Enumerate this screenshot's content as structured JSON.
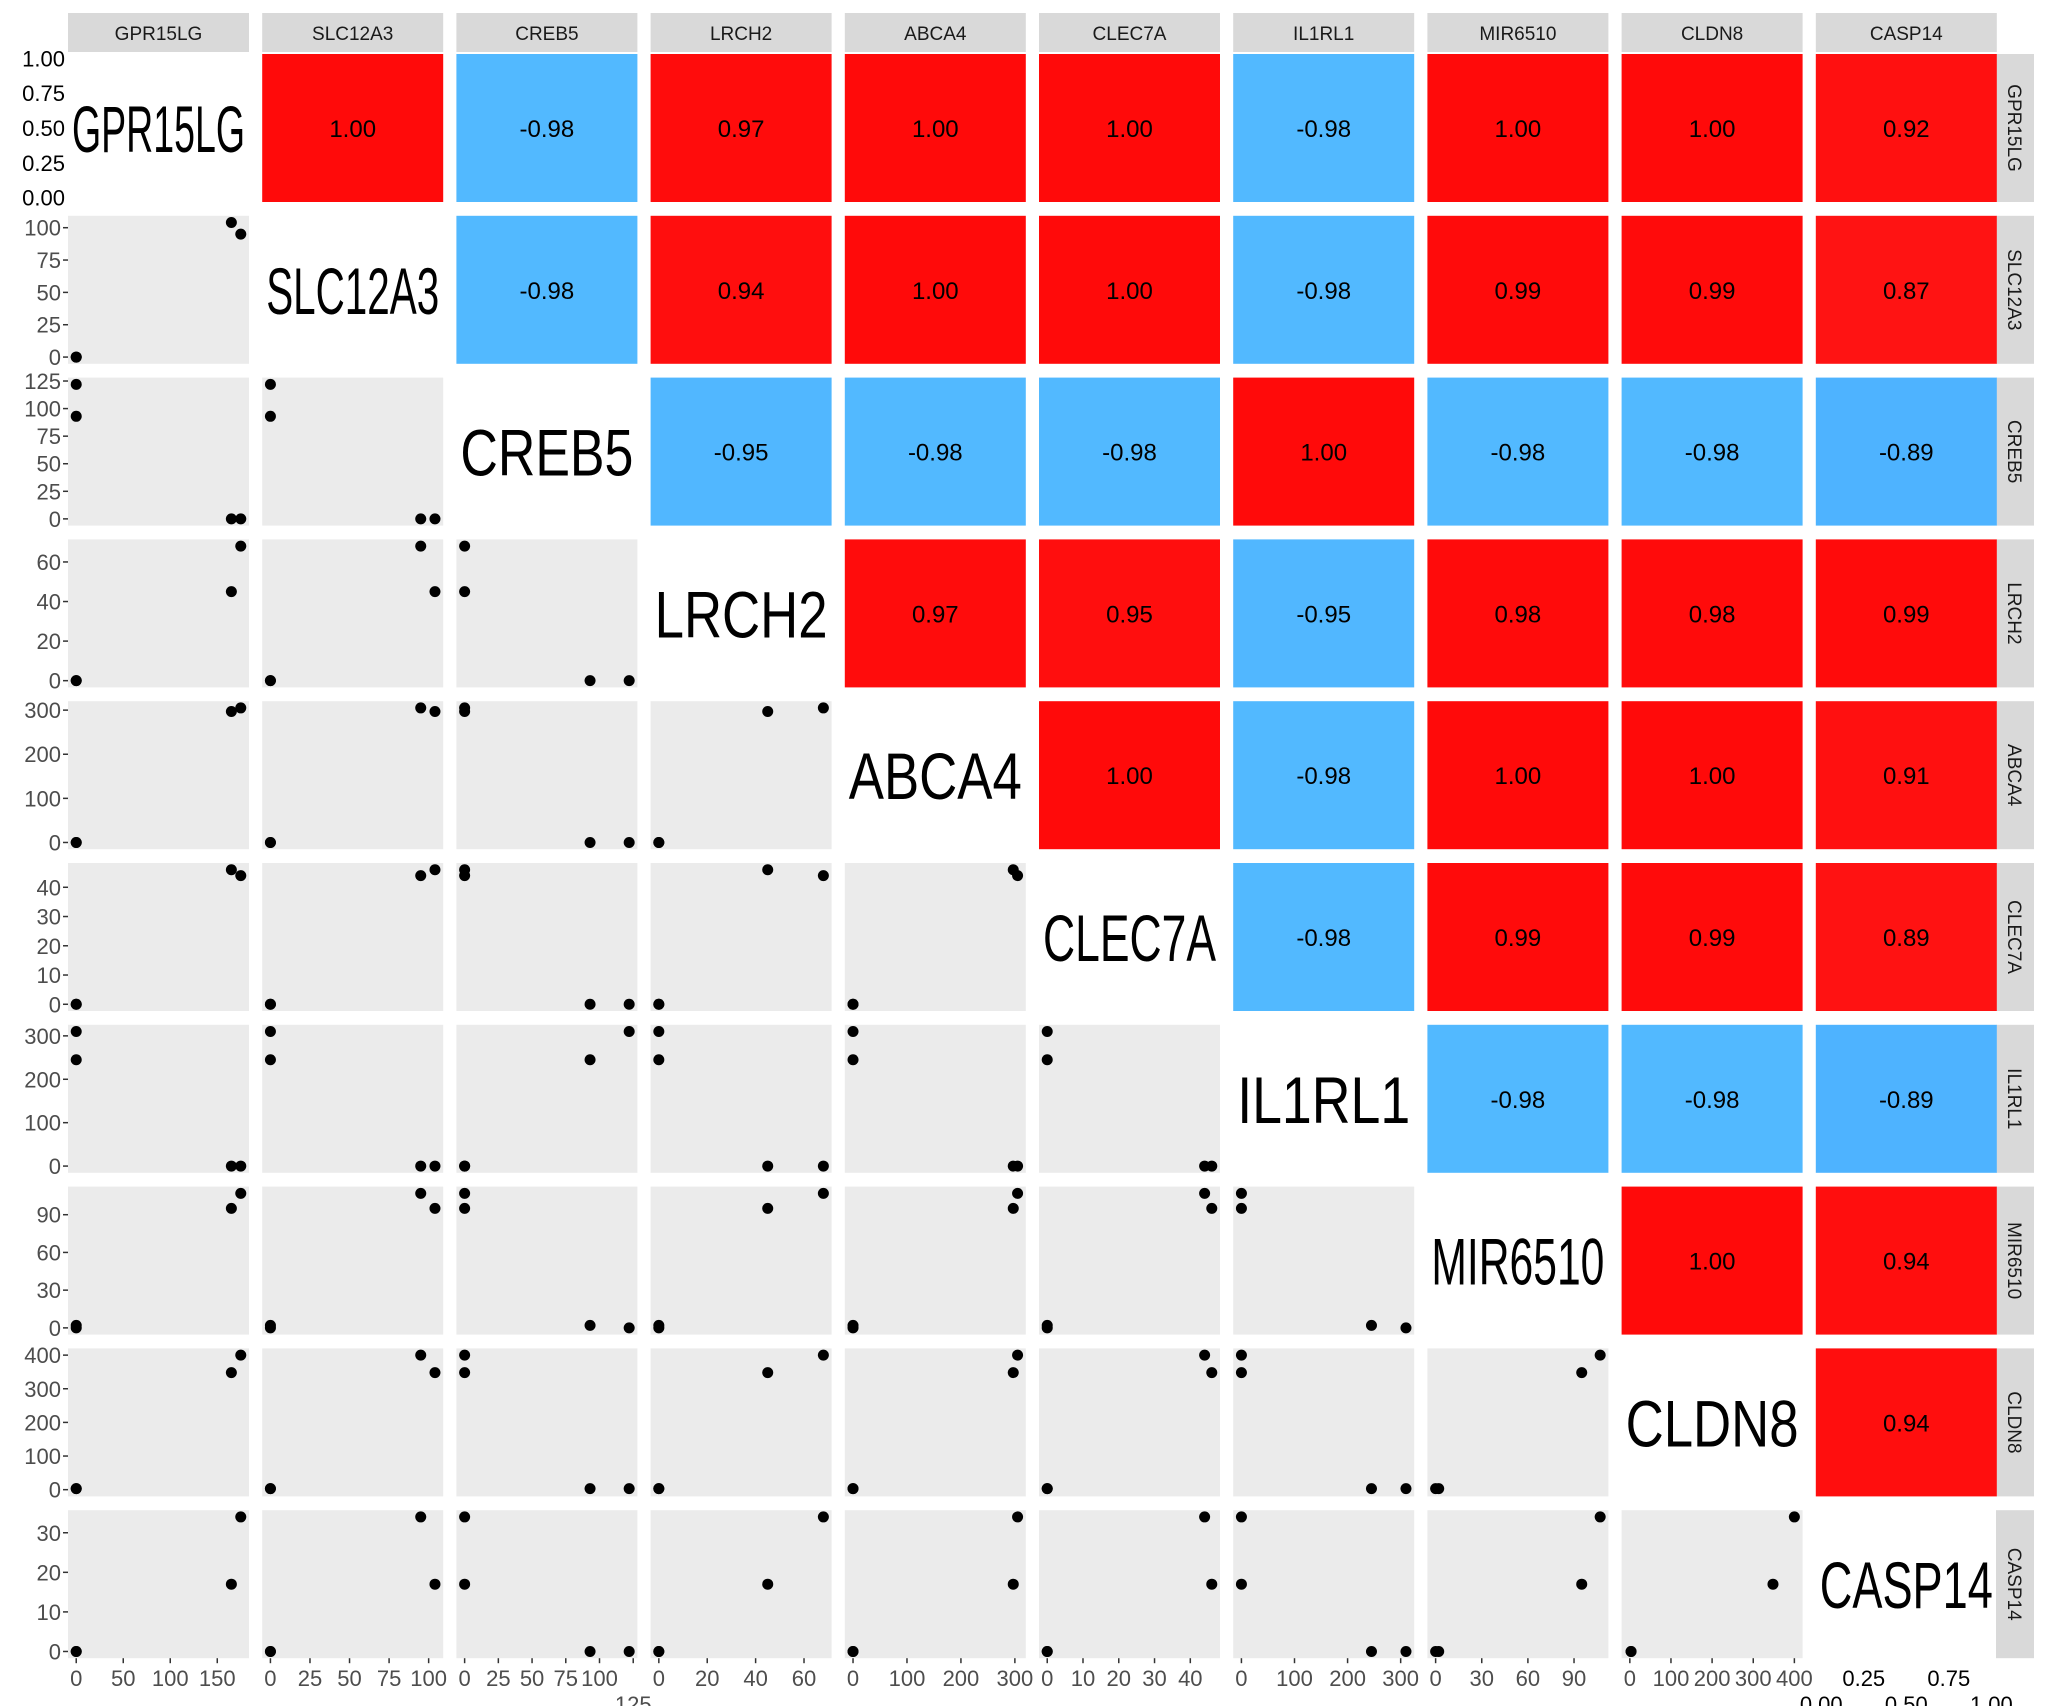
{
  "chart_data": {
    "type": "scatter-matrix",
    "variables": [
      "GPR15LG",
      "SLC12A3",
      "CREB5",
      "LRCH2",
      "ABCA4",
      "CLEC7A",
      "IL1RL1",
      "MIR6510",
      "CLDN8",
      "CASP14"
    ],
    "samples": [
      [
        0,
        0,
        122,
        0,
        0,
        0,
        310,
        0,
        3,
        0
      ],
      [
        0,
        0,
        93,
        0,
        0,
        0,
        245,
        2,
        3,
        0
      ],
      [
        165,
        104,
        0,
        45,
        297,
        46,
        0,
        95,
        348,
        17
      ],
      [
        175,
        95,
        0,
        68,
        305,
        44,
        0,
        107,
        400,
        34
      ]
    ],
    "ranges": [
      [
        -8.75,
        183.75
      ],
      [
        -5.2,
        109.2
      ],
      [
        -6.1,
        128.1
      ],
      [
        -3.4,
        71.4
      ],
      [
        -15.25,
        320.25
      ],
      [
        -2.3,
        48.3
      ],
      [
        -15.5,
        325.5
      ],
      [
        -5.35,
        112.35
      ],
      [
        -20,
        420
      ],
      [
        -1.7,
        35.7
      ]
    ],
    "ticks": [
      [
        "0",
        "50",
        "100",
        "150"
      ],
      [
        "0",
        "25",
        "50",
        "75",
        "100"
      ],
      [
        "0",
        "25",
        "50",
        "75",
        "100",
        "125"
      ],
      [
        "0",
        "20",
        "40",
        "60"
      ],
      [
        "0",
        "100",
        "200",
        "300"
      ],
      [
        "0",
        "10",
        "20",
        "30",
        "40"
      ],
      [
        "0",
        "100",
        "200",
        "300"
      ],
      [
        "0",
        "30",
        "60",
        "90"
      ],
      [
        "0",
        "100",
        "200",
        "300",
        "400"
      ],
      [
        "0",
        "10",
        "20",
        "30"
      ]
    ],
    "diag_ticks": [
      "0.00",
      "0.25",
      "0.50",
      "0.75",
      "1.00"
    ],
    "correlations": [
      [
        null,
        "1.00",
        "-0.98",
        "0.97",
        "1.00",
        "1.00",
        "-0.98",
        "1.00",
        "1.00",
        "0.92"
      ],
      [
        null,
        null,
        "-0.98",
        "0.94",
        "1.00",
        "1.00",
        "-0.98",
        "0.99",
        "0.99",
        "0.87"
      ],
      [
        null,
        null,
        null,
        "-0.95",
        "-0.98",
        "-0.98",
        "1.00",
        "-0.98",
        "-0.98",
        "-0.89"
      ],
      [
        null,
        null,
        null,
        null,
        "0.97",
        "0.95",
        "-0.95",
        "0.98",
        "0.98",
        "0.99"
      ],
      [
        null,
        null,
        null,
        null,
        null,
        "1.00",
        "-0.98",
        "1.00",
        "1.00",
        "0.91"
      ],
      [
        null,
        null,
        null,
        null,
        null,
        null,
        "-0.98",
        "0.99",
        "0.99",
        "0.89"
      ],
      [
        null,
        null,
        null,
        null,
        null,
        null,
        null,
        "-0.98",
        "-0.98",
        "-0.89"
      ],
      [
        null,
        null,
        null,
        null,
        null,
        null,
        null,
        null,
        "1.00",
        "0.94"
      ],
      [
        null,
        null,
        null,
        null,
        null,
        null,
        null,
        null,
        null,
        "0.94"
      ],
      [
        null,
        null,
        null,
        null,
        null,
        null,
        null,
        null,
        null,
        null
      ]
    ],
    "colors": {
      "positive": "#FF0A0A",
      "negative": "#52B9FF",
      "scatter_bg": "#EBEBEB",
      "strip_bg": "#D9D9D9",
      "point": "#000000"
    },
    "grid": false
  }
}
